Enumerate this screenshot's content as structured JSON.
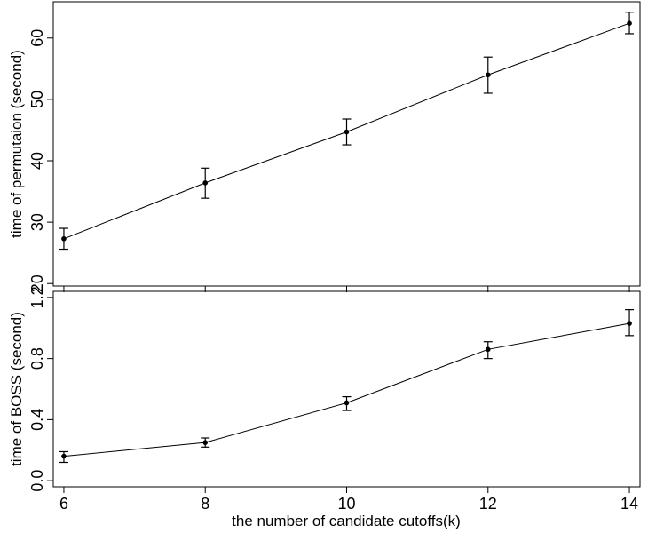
{
  "chart_data": [
    {
      "type": "line",
      "title": "",
      "xlabel": "",
      "ylabel": "time of permutaion (second)",
      "xlim": [
        5.85,
        14.15
      ],
      "ylim": [
        19.6,
        65.9
      ],
      "xticks": [
        6,
        8,
        10,
        12,
        14
      ],
      "yticks": [
        20,
        30,
        40,
        50,
        60
      ],
      "ytick_labels": [
        "20",
        "30",
        "40",
        "50",
        "60"
      ],
      "show_xtick_labels": false,
      "series": [
        {
          "x": [
            6,
            8,
            10,
            12,
            14
          ],
          "y": [
            27.3,
            36.4,
            44.7,
            54.0,
            62.4
          ],
          "yerr_low": [
            25.6,
            33.9,
            42.6,
            51.0,
            60.7
          ],
          "yerr_high": [
            29.0,
            38.8,
            46.8,
            56.9,
            64.2
          ]
        }
      ]
    },
    {
      "type": "line",
      "title": "",
      "xlabel": "the number of candidate cutoffs(k)",
      "ylabel": "time of BOSS (second)",
      "xlim": [
        5.85,
        14.15
      ],
      "ylim": [
        -0.04,
        1.24
      ],
      "xticks": [
        6,
        8,
        10,
        12,
        14
      ],
      "xtick_labels": [
        "6",
        "8",
        "10",
        "12",
        "14"
      ],
      "yticks": [
        0.0,
        0.4,
        0.8,
        1.2
      ],
      "ytick_labels": [
        "0.0",
        "0.4",
        "0.8",
        "1.2"
      ],
      "show_xtick_labels": true,
      "series": [
        {
          "x": [
            6,
            8,
            10,
            12,
            14
          ],
          "y": [
            0.16,
            0.25,
            0.51,
            0.86,
            1.03
          ],
          "yerr_low": [
            0.12,
            0.22,
            0.46,
            0.8,
            0.95
          ],
          "yerr_high": [
            0.19,
            0.28,
            0.55,
            0.91,
            1.12
          ]
        }
      ]
    }
  ]
}
